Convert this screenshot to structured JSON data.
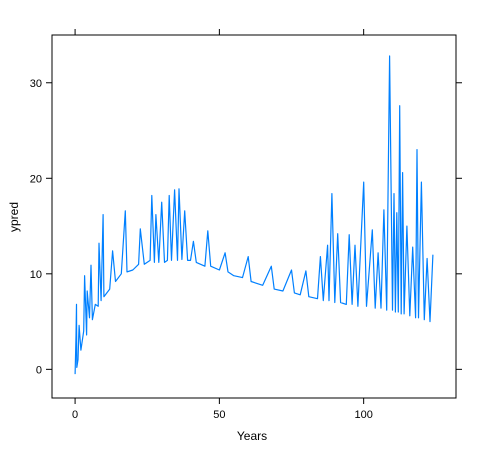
{
  "chart_data": {
    "type": "line",
    "title": "",
    "xlabel": "Years",
    "ylabel": "ypred",
    "xlim": [
      -8,
      132
    ],
    "ylim": [
      -3,
      35
    ],
    "xticks": [
      0,
      50,
      100
    ],
    "yticks": [
      0,
      10,
      20,
      30
    ],
    "grid": false,
    "series_color": "#0080ff",
    "series": [
      {
        "points": [
          [
            0.0,
            -0.5
          ],
          [
            0.3,
            3.5
          ],
          [
            0.5,
            6.8
          ],
          [
            0.6,
            0.2
          ],
          [
            1.0,
            1.0
          ],
          [
            1.4,
            4.6
          ],
          [
            2.0,
            2.0
          ],
          [
            3.0,
            4.0
          ],
          [
            3.3,
            9.8
          ],
          [
            4.0,
            3.6
          ],
          [
            4.2,
            8.2
          ],
          [
            5.0,
            5.4
          ],
          [
            5.5,
            10.9
          ],
          [
            6.0,
            5.2
          ],
          [
            7.0,
            6.8
          ],
          [
            8.0,
            6.6
          ],
          [
            8.3,
            13.2
          ],
          [
            9.0,
            7.2
          ],
          [
            9.7,
            16.2
          ],
          [
            10.0,
            7.6
          ],
          [
            12.0,
            8.4
          ],
          [
            13.0,
            12.4
          ],
          [
            14.0,
            9.2
          ],
          [
            16.0,
            10.0
          ],
          [
            17.4,
            16.6
          ],
          [
            18.0,
            10.2
          ],
          [
            20.0,
            10.4
          ],
          [
            22.0,
            11.0
          ],
          [
            22.6,
            14.7
          ],
          [
            24.0,
            11.0
          ],
          [
            26.0,
            11.4
          ],
          [
            26.6,
            18.2
          ],
          [
            27.5,
            11.2
          ],
          [
            28.0,
            16.2
          ],
          [
            29.0,
            11.2
          ],
          [
            30.0,
            17.5
          ],
          [
            31.0,
            11.2
          ],
          [
            32.0,
            11.4
          ],
          [
            32.6,
            18.2
          ],
          [
            33.4,
            11.4
          ],
          [
            34.5,
            18.8
          ],
          [
            35.5,
            11.4
          ],
          [
            36.0,
            18.9
          ],
          [
            37.0,
            11.5
          ],
          [
            38.0,
            16.6
          ],
          [
            39.0,
            11.4
          ],
          [
            40.0,
            11.4
          ],
          [
            41.0,
            13.4
          ],
          [
            42.0,
            11.2
          ],
          [
            45.0,
            10.8
          ],
          [
            46.0,
            14.5
          ],
          [
            47.0,
            10.8
          ],
          [
            50.0,
            10.4
          ],
          [
            52.0,
            12.2
          ],
          [
            53.0,
            10.2
          ],
          [
            55.0,
            9.8
          ],
          [
            58.0,
            9.6
          ],
          [
            60.0,
            11.8
          ],
          [
            61.0,
            9.2
          ],
          [
            65.0,
            8.8
          ],
          [
            68.0,
            10.8
          ],
          [
            69.0,
            8.4
          ],
          [
            72.0,
            8.2
          ],
          [
            75.0,
            10.4
          ],
          [
            76.0,
            8.0
          ],
          [
            78.0,
            7.8
          ],
          [
            80.0,
            10.3
          ],
          [
            81.0,
            7.6
          ],
          [
            84.0,
            7.4
          ],
          [
            85.0,
            11.8
          ],
          [
            86.0,
            7.2
          ],
          [
            87.5,
            13.0
          ],
          [
            88.0,
            7.2
          ],
          [
            89.0,
            18.4
          ],
          [
            90.0,
            7.0
          ],
          [
            91.0,
            14.2
          ],
          [
            92.0,
            7.0
          ],
          [
            94.0,
            6.8
          ],
          [
            95.0,
            14.1
          ],
          [
            96.0,
            6.8
          ],
          [
            97.0,
            13.0
          ],
          [
            98.0,
            6.6
          ],
          [
            100.0,
            19.6
          ],
          [
            101.0,
            6.6
          ],
          [
            103.0,
            14.6
          ],
          [
            104.0,
            6.4
          ],
          [
            105.0,
            12.2
          ],
          [
            106.0,
            6.4
          ],
          [
            107.0,
            16.7
          ],
          [
            108.0,
            6.2
          ],
          [
            109.0,
            32.8
          ],
          [
            110.0,
            6.2
          ],
          [
            110.5,
            18.4
          ],
          [
            111.0,
            6.0
          ],
          [
            111.5,
            16.4
          ],
          [
            112.0,
            6.0
          ],
          [
            112.5,
            27.6
          ],
          [
            113.0,
            5.8
          ],
          [
            113.5,
            20.6
          ],
          [
            114.0,
            5.8
          ],
          [
            115.0,
            15.0
          ],
          [
            116.0,
            5.6
          ],
          [
            117.0,
            12.8
          ],
          [
            118.0,
            5.4
          ],
          [
            118.5,
            23.0
          ],
          [
            119.0,
            5.4
          ],
          [
            120.0,
            19.6
          ],
          [
            121.0,
            5.2
          ],
          [
            122.0,
            11.6
          ],
          [
            123.0,
            5.0
          ],
          [
            124.0,
            12.0
          ]
        ]
      }
    ]
  }
}
